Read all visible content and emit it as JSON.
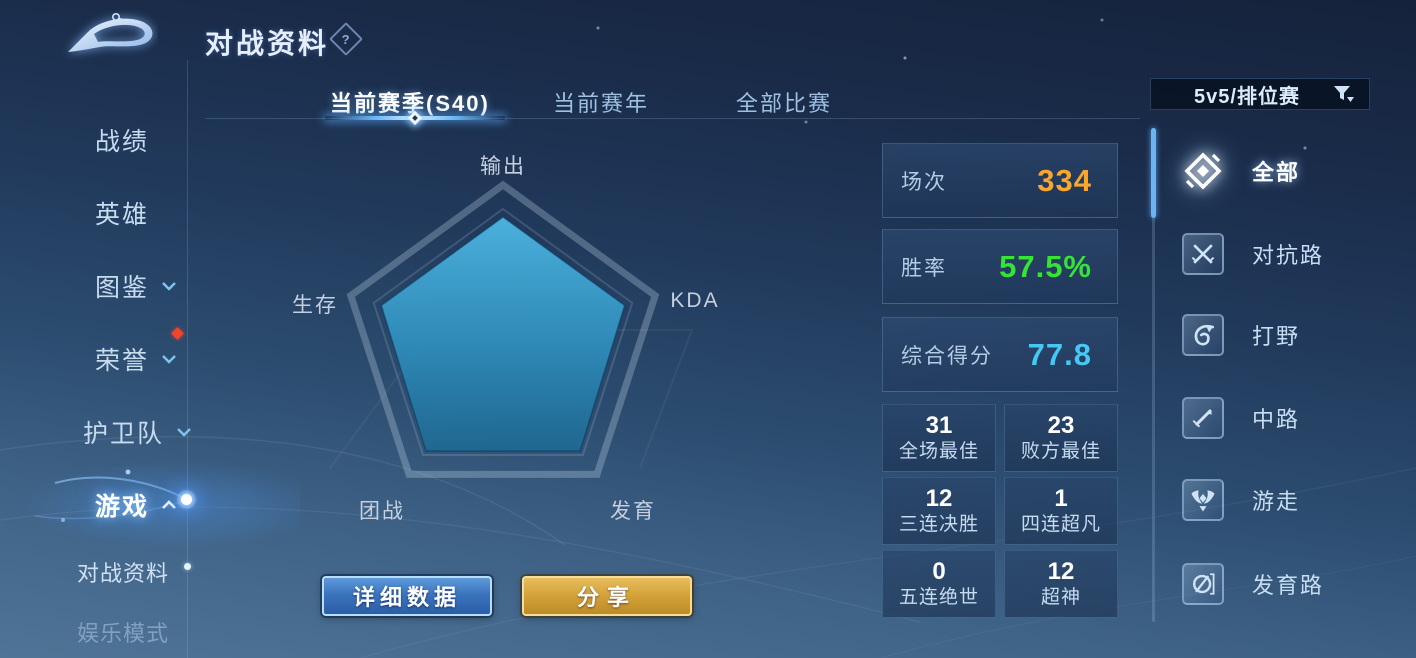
{
  "header": {
    "title": "对战资料",
    "help_glyph": "?"
  },
  "filter_dropdown": {
    "value": "5v5/排位赛"
  },
  "tabs": [
    {
      "label": "当前赛季(S40)",
      "active": true
    },
    {
      "label": "当前赛年",
      "active": false
    },
    {
      "label": "全部比赛",
      "active": false
    }
  ],
  "left_sidebar": {
    "items": [
      {
        "label": "战绩"
      },
      {
        "label": "英雄"
      },
      {
        "label": "图鉴",
        "chevron": "down"
      },
      {
        "label": "荣誉",
        "chevron": "down",
        "badge": "red-dot"
      },
      {
        "label": "护卫队",
        "chevron": "down"
      },
      {
        "label": "游戏",
        "chevron": "up",
        "active": true
      },
      {
        "label": "对战资料",
        "sub": true,
        "current": true
      },
      {
        "label": "娱乐模式",
        "sub": true
      }
    ]
  },
  "chart_data": {
    "type": "radar",
    "axes": [
      "输出",
      "KDA",
      "发育",
      "团战",
      "生存"
    ],
    "values": [
      80,
      80,
      82,
      82,
      80
    ],
    "max": 100,
    "rings": [
      100,
      85
    ],
    "fill_top_color": "#4db5e2",
    "fill_bottom_color": "#1d6a94",
    "frame_color": "rgba(215,232,248,0.27)",
    "legend": "none",
    "grid": "pentagon-frame-only"
  },
  "summary_stats": [
    {
      "label": "场次",
      "value": "334",
      "color": "#f8a72a"
    },
    {
      "label": "胜率",
      "value": "57.5%",
      "color": "#35e435"
    },
    {
      "label": "综合得分",
      "value": "77.8",
      "color": "#45c8f5"
    }
  ],
  "achievement_stats": [
    {
      "value": "31",
      "label": "全场最佳"
    },
    {
      "value": "23",
      "label": "败方最佳"
    },
    {
      "value": "12",
      "label": "三连决胜"
    },
    {
      "value": "1",
      "label": "四连超凡"
    },
    {
      "value": "0",
      "label": "五连绝世"
    },
    {
      "value": "12",
      "label": "超神"
    }
  ],
  "actions": {
    "detail_label": "详细数据",
    "share_label": "分享"
  },
  "lane_filter": {
    "items": [
      {
        "label": "全部",
        "icon": "all-lanes-icon",
        "active": true
      },
      {
        "label": "对抗路",
        "icon": "clash-lane-icon",
        "active": false
      },
      {
        "label": "打野",
        "icon": "jungle-icon",
        "active": false
      },
      {
        "label": "中路",
        "icon": "mid-lane-icon",
        "active": false
      },
      {
        "label": "游走",
        "icon": "roam-icon",
        "active": false
      },
      {
        "label": "发育路",
        "icon": "farm-lane-icon",
        "active": false
      }
    ]
  },
  "colors": {
    "accent_blue": "#6fb2f2",
    "button_gold": "#d3a138",
    "underline_glow": "#9fd4ff"
  }
}
